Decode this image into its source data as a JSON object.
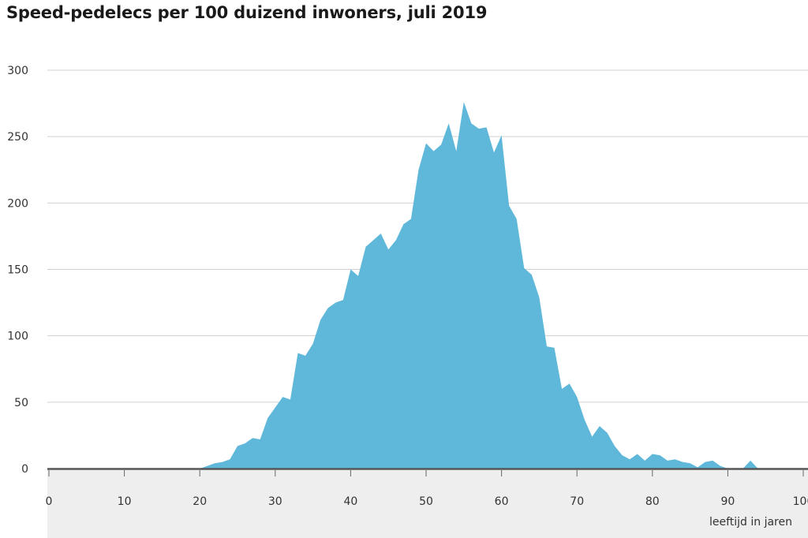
{
  "chart_data": {
    "type": "area",
    "title": "Speed-pedelecs per 100 duizend inwoners, juli 2019",
    "xlabel": "leeftijd in jaren",
    "ylabel": "",
    "xlim": [
      0,
      100
    ],
    "ylim": [
      0,
      300
    ],
    "xticks": [
      0,
      10,
      20,
      30,
      40,
      50,
      60,
      70,
      80,
      90,
      100
    ],
    "yticks": [
      0,
      50,
      100,
      150,
      200,
      250,
      300
    ],
    "grid": "horizontal",
    "colors": {
      "area": "#5fb8d9",
      "grid": "#d0d0d0",
      "baseline": "#555555",
      "axis_band": "#eeeeee"
    },
    "x": [
      0,
      1,
      2,
      3,
      4,
      5,
      6,
      7,
      8,
      9,
      10,
      11,
      12,
      13,
      14,
      15,
      16,
      17,
      18,
      19,
      20,
      21,
      22,
      23,
      24,
      25,
      26,
      27,
      28,
      29,
      30,
      31,
      32,
      33,
      34,
      35,
      36,
      37,
      38,
      39,
      40,
      41,
      42,
      43,
      44,
      45,
      46,
      47,
      48,
      49,
      50,
      51,
      52,
      53,
      54,
      55,
      56,
      57,
      58,
      59,
      60,
      61,
      62,
      63,
      64,
      65,
      66,
      67,
      68,
      69,
      70,
      71,
      72,
      73,
      74,
      75,
      76,
      77,
      78,
      79,
      80,
      81,
      82,
      83,
      84,
      85,
      86,
      87,
      88,
      89,
      90,
      91,
      92,
      93,
      94,
      95,
      96,
      97,
      98,
      99,
      100
    ],
    "values": [
      0,
      0,
      0,
      0,
      0,
      0,
      0,
      0,
      0,
      0,
      0,
      0,
      0,
      0,
      0,
      0,
      0,
      0,
      0,
      0,
      0,
      2,
      4,
      5,
      7,
      17,
      19,
      23,
      22,
      38,
      46,
      54,
      52,
      87,
      85,
      94,
      112,
      121,
      125,
      127,
      150,
      145,
      167,
      172,
      177,
      165,
      172,
      184,
      188,
      225,
      245,
      239,
      244,
      260,
      239,
      276,
      260,
      256,
      257,
      238,
      251,
      198,
      188,
      151,
      146,
      129,
      92,
      91,
      60,
      64,
      54,
      37,
      24,
      32,
      27,
      17,
      10,
      7,
      11,
      6,
      11,
      10,
      6,
      7,
      5,
      4,
      1,
      5,
      6,
      2,
      0,
      0,
      0,
      6,
      0,
      0,
      0,
      0,
      0,
      0,
      0
    ]
  }
}
